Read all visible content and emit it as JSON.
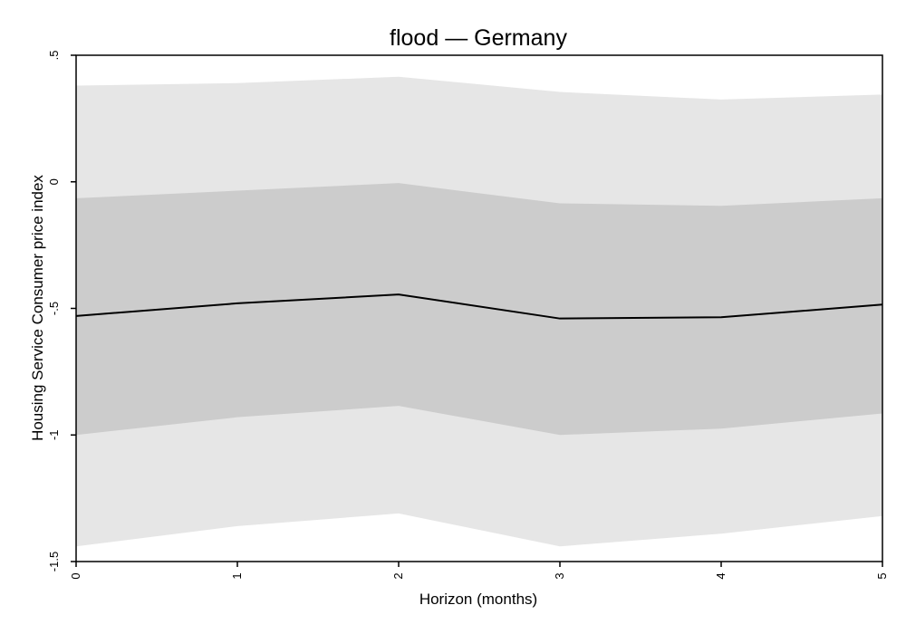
{
  "chart_data": {
    "type": "line",
    "title": "flood — Germany",
    "xlabel": "Horizon (months)",
    "ylabel": "Housing Service Consumer price index",
    "x": [
      0,
      1,
      2,
      3,
      4,
      5
    ],
    "xlim": [
      0,
      5
    ],
    "ylim": [
      -1.5,
      0.5
    ],
    "x_ticks": [
      "0",
      "1",
      "2",
      "3",
      "4",
      "5"
    ],
    "y_ticks": [
      ".5",
      "0",
      "-.5",
      "-1",
      "-1.5"
    ],
    "y_tick_values": [
      0.5,
      0,
      -0.5,
      -1,
      -1.5
    ],
    "grid": false,
    "series": [
      {
        "values": [
          -0.53,
          -0.48,
          -0.445,
          -0.54,
          -0.535,
          -0.485
        ]
      }
    ],
    "bands": [
      {
        "lower": [
          -1.44,
          -1.36,
          -1.31,
          -1.44,
          -1.39,
          -1.32
        ],
        "upper": [
          0.38,
          0.39,
          0.415,
          0.355,
          0.325,
          0.345
        ]
      },
      {
        "lower": [
          -1.0,
          -0.93,
          -0.885,
          -1.0,
          -0.975,
          -0.915
        ],
        "upper": [
          -0.065,
          -0.035,
          -0.005,
          -0.085,
          -0.095,
          -0.065
        ]
      }
    ],
    "colors": {
      "outer_band": "#e6e6e6",
      "inner_band": "#cccccc",
      "line": "#000000",
      "axis": "#000000"
    }
  }
}
